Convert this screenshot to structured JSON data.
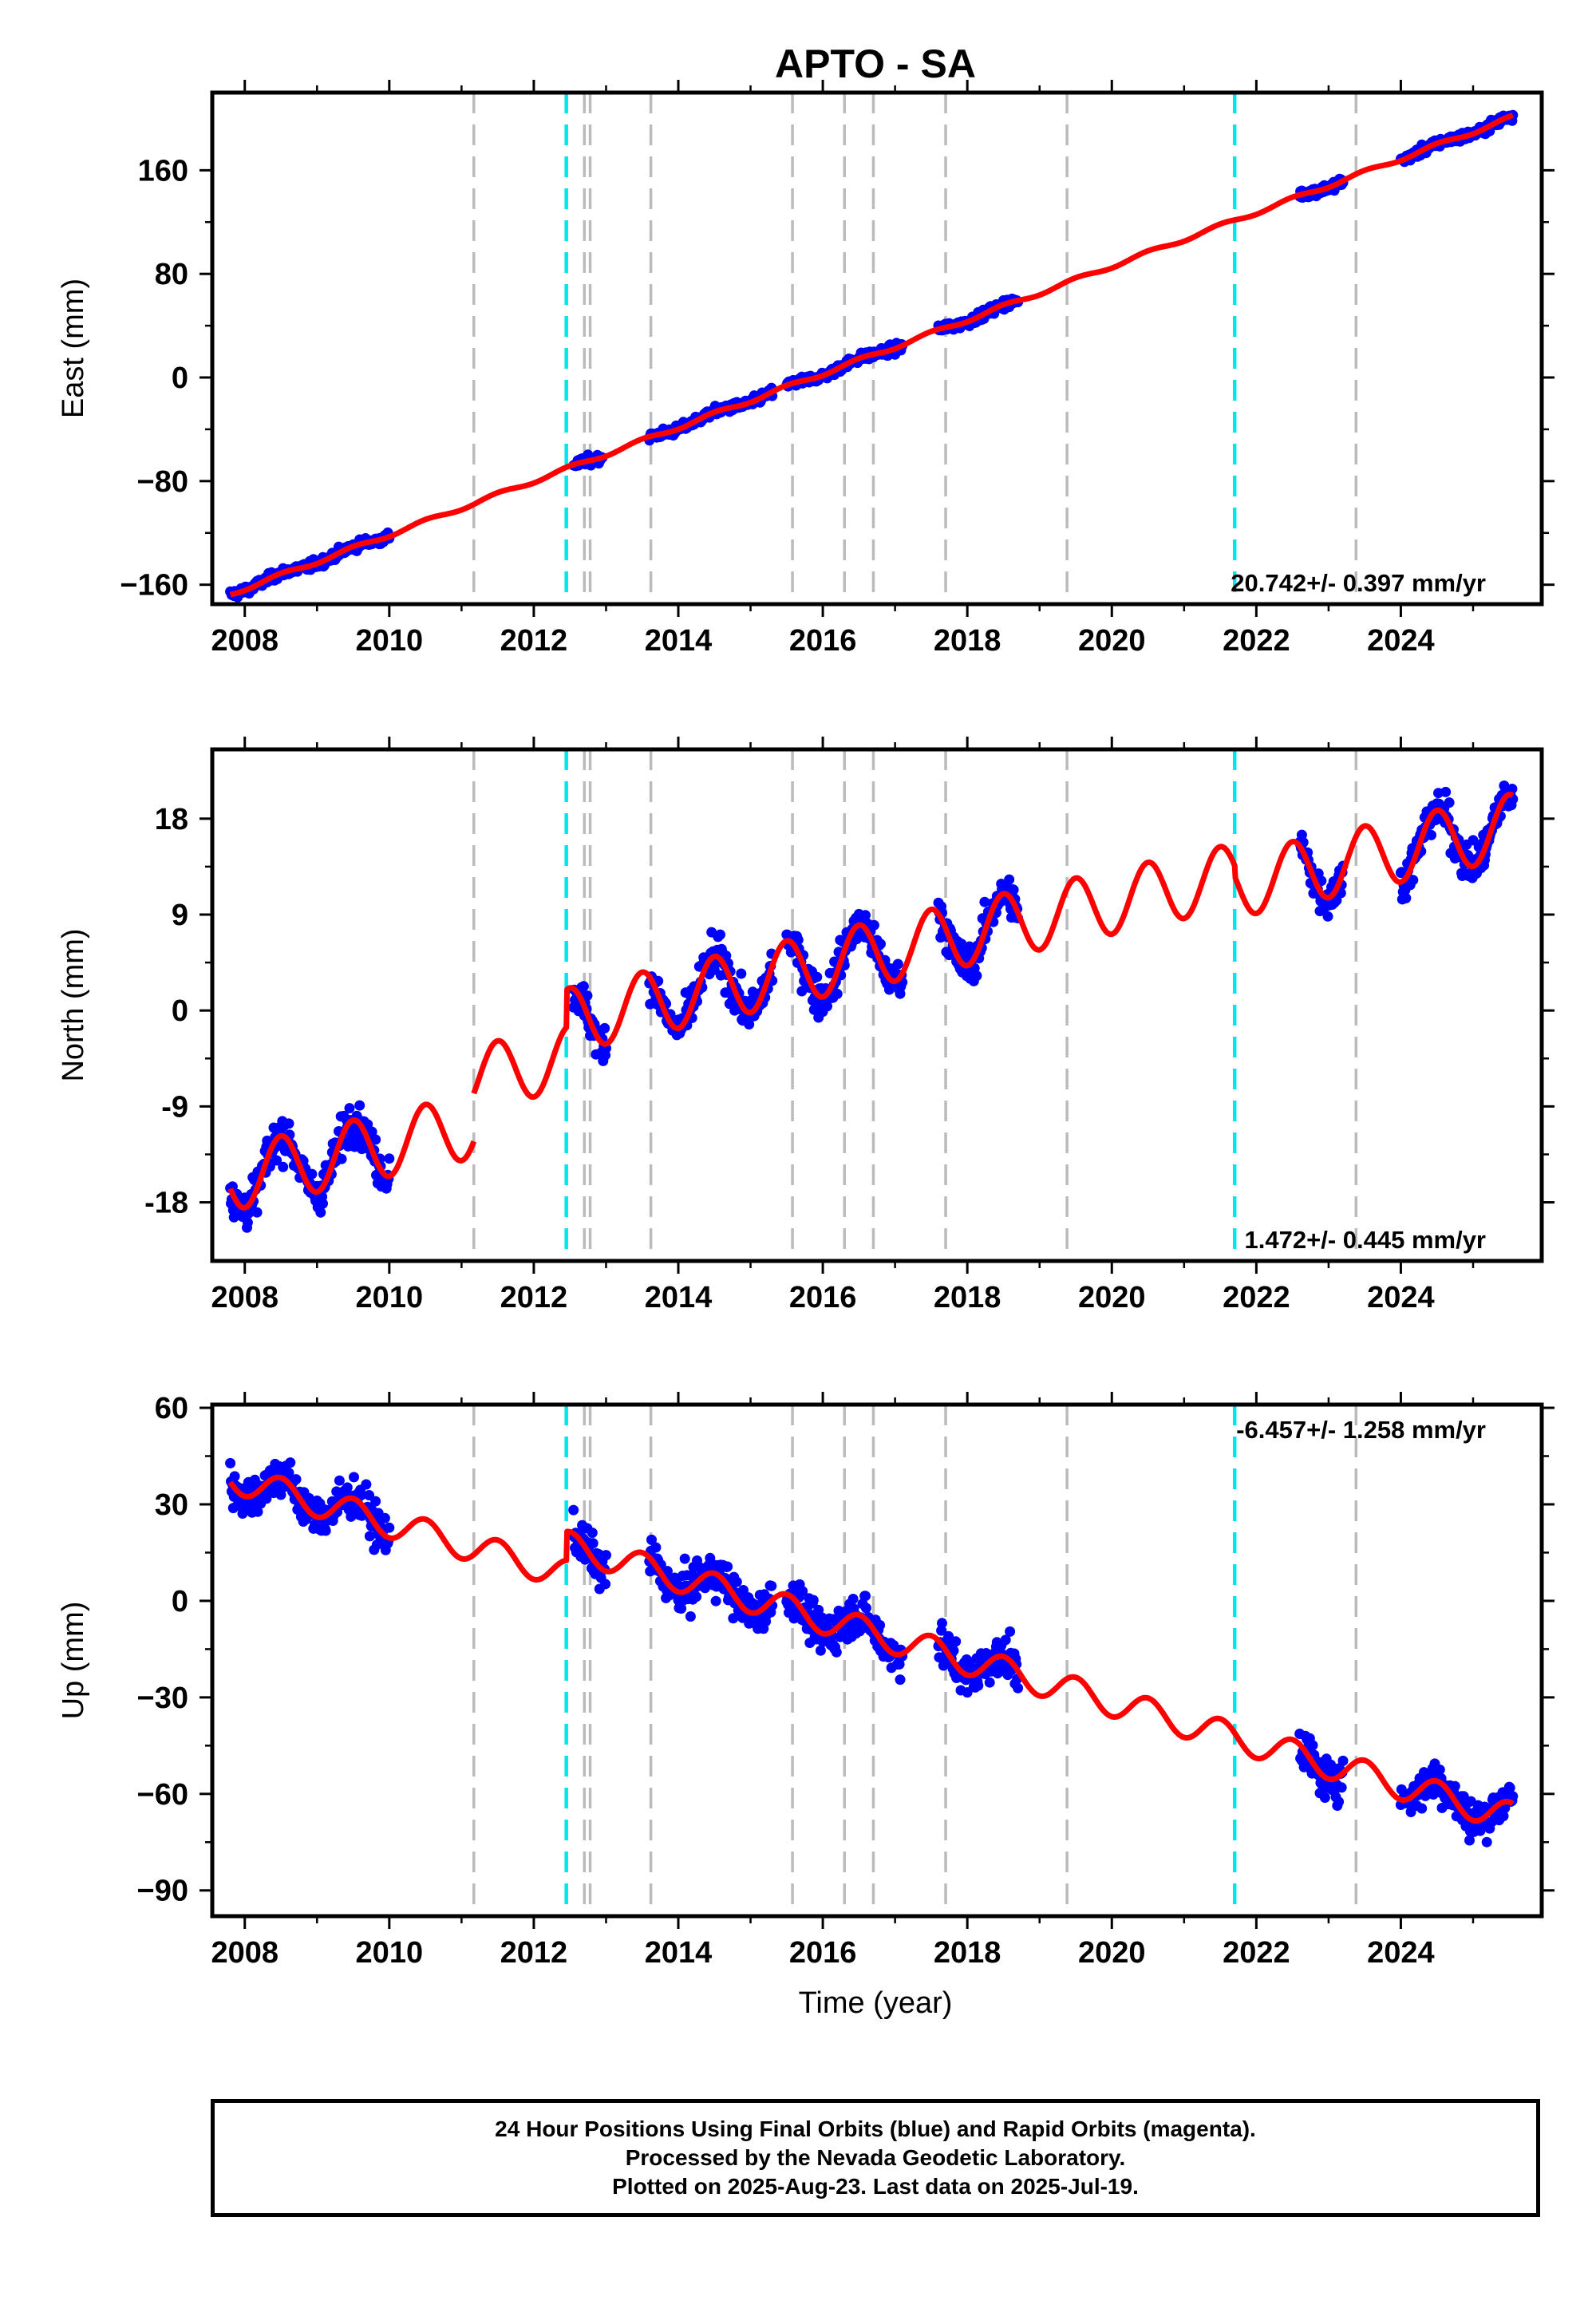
{
  "title": "APTO - SA",
  "xlabel": "Time (year)",
  "x_ticks": [
    "2008",
    "2010",
    "2012",
    "2014",
    "2016",
    "2018",
    "2020",
    "2022",
    "2024"
  ],
  "colors": {
    "data": "#0000ff",
    "model": "#ff0000",
    "equipment_change": "#bbbbbb",
    "earthquake": "#00e5ee",
    "frame": "#000000"
  },
  "gray_events": [
    2011.17,
    2012.7,
    2012.78,
    2013.62,
    2015.58,
    2016.3,
    2016.7,
    2017.7,
    2019.38,
    2023.38
  ],
  "cyan_events": [
    2012.45,
    2021.7
  ],
  "chart_data": [
    {
      "type": "scatter",
      "ylabel": "East (mm)",
      "ylim": [
        -175,
        220
      ],
      "xlim": [
        2007.55,
        2025.95
      ],
      "y_ticks": [
        -160,
        -80,
        0,
        80,
        160
      ],
      "y_tick_labels": [
        "−160",
        "−80",
        "0",
        "80",
        "160"
      ],
      "rate_label": "20.742+/- 0.397 mm/yr",
      "rate_position": "bottom-right",
      "trend": {
        "t0": 2008.0,
        "v0": -163,
        "rate": 20.742
      },
      "seasonal": {
        "amp": 1.5,
        "period": 1.0
      },
      "noise": 2.5,
      "data_segments": [
        [
          2007.8,
          2010.0
        ],
        [
          2012.55,
          2012.95
        ],
        [
          2013.6,
          2015.3
        ],
        [
          2015.5,
          2017.1
        ],
        [
          2017.6,
          2018.7
        ],
        [
          2022.6,
          2023.2
        ],
        [
          2024.0,
          2025.55
        ]
      ],
      "model_segments": [
        [
          2007.8,
          2025.55
        ]
      ],
      "offsets": []
    },
    {
      "type": "scatter",
      "ylabel": "North (mm)",
      "ylim": [
        -23.5,
        24.5
      ],
      "xlim": [
        2007.55,
        2025.95
      ],
      "y_ticks": [
        -18,
        -9,
        0,
        9,
        18
      ],
      "y_tick_labels": [
        "-18",
        "-9",
        "0",
        "9",
        "18"
      ],
      "rate_label": "1.472+/- 0.445 mm/yr",
      "rate_position": "bottom-right",
      "trend": {
        "t0": 2008.0,
        "v0": -15.5,
        "rate": 1.472
      },
      "seasonal": {
        "amp": 3.0,
        "period": 1.0
      },
      "noise": 1.3,
      "data_segments": [
        [
          2007.8,
          2010.0
        ],
        [
          2012.55,
          2013.0
        ],
        [
          2013.6,
          2015.3
        ],
        [
          2015.5,
          2017.1
        ],
        [
          2017.6,
          2018.7
        ],
        [
          2022.6,
          2023.2
        ],
        [
          2024.0,
          2025.55
        ]
      ],
      "model_segments": [
        [
          2007.8,
          2011.17
        ],
        [
          2011.17,
          2025.55
        ]
      ],
      "offsets": [
        [
          2011.17,
          4.5
        ],
        [
          2012.45,
          3.5
        ],
        [
          2021.7,
          -1.0
        ]
      ]
    },
    {
      "type": "scatter",
      "ylabel": "Up (mm)",
      "ylim": [
        -98,
        61
      ],
      "xlim": [
        2007.55,
        2025.95
      ],
      "y_ticks": [
        -90,
        -60,
        -30,
        0,
        30,
        60
      ],
      "y_tick_labels": [
        "−90",
        "−60",
        "−30",
        "0",
        "30",
        "60"
      ],
      "rate_label": "-6.457+/- 1.258 mm/yr",
      "rate_position": "top-right",
      "trend": {
        "t0": 2008.0,
        "v0": 37,
        "rate": -6.457
      },
      "seasonal": {
        "amp": 4.5,
        "period": 1.0
      },
      "noise": 4.5,
      "data_segments": [
        [
          2007.8,
          2010.0
        ],
        [
          2012.55,
          2013.0
        ],
        [
          2013.6,
          2015.3
        ],
        [
          2015.5,
          2017.1
        ],
        [
          2017.6,
          2018.7
        ],
        [
          2022.6,
          2023.2
        ],
        [
          2024.0,
          2025.55
        ]
      ],
      "model_segments": [
        [
          2007.8,
          2025.55
        ]
      ],
      "offsets": [
        [
          2012.45,
          9.0
        ]
      ]
    }
  ],
  "footer": {
    "line1": "24 Hour Positions Using Final Orbits (blue) and Rapid Orbits (magenta).",
    "line2": "Processed by the Nevada Geodetic Laboratory.",
    "line3": "Plotted on 2025-Aug-23. Last data on 2025-Jul-19."
  }
}
